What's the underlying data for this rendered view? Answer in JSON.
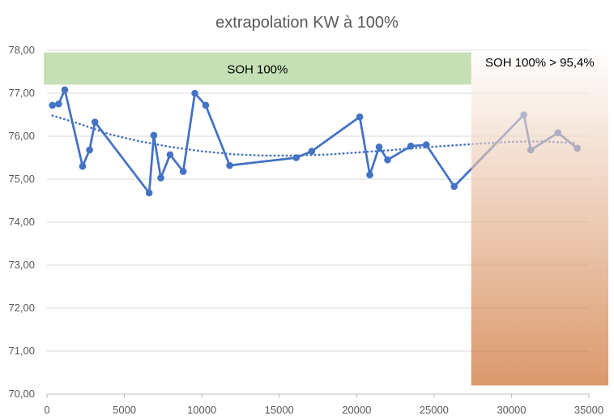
{
  "chart_data": {
    "type": "line",
    "title": "extrapolation KW à 100%",
    "xlabel": "",
    "ylabel": "",
    "xlim": [
      0,
      35000
    ],
    "ylim": [
      70,
      78
    ],
    "x_ticks": [
      0,
      5000,
      10000,
      15000,
      20000,
      25000,
      30000,
      35000
    ],
    "x_tick_labels": [
      "0",
      "5000",
      "10000",
      "15000",
      "20000",
      "25000",
      "30000",
      "35000"
    ],
    "y_ticks": [
      70,
      71,
      72,
      73,
      74,
      75,
      76,
      77,
      78
    ],
    "y_tick_labels": [
      "70,00",
      "71,00",
      "72,00",
      "73,00",
      "74,00",
      "75,00",
      "76,00",
      "77,00",
      "78,00"
    ],
    "grid": {
      "y": true,
      "x": false
    },
    "series": [
      {
        "color": "#4472C4",
        "x": [
          350,
          750,
          1150,
          2300,
          2750,
          3100,
          6600,
          6900,
          7350,
          7950,
          8800,
          9550,
          10250,
          11800,
          16100,
          17100,
          20200,
          20850,
          21450,
          22000,
          23500,
          24500,
          26300,
          30800,
          31250,
          33000,
          34250
        ],
        "y": [
          76.72,
          76.75,
          77.08,
          75.3,
          75.68,
          76.33,
          74.68,
          76.02,
          75.03,
          75.57,
          75.18,
          77.0,
          76.72,
          75.32,
          75.5,
          75.65,
          76.45,
          75.1,
          75.75,
          75.45,
          75.77,
          75.8,
          74.83,
          76.5,
          75.68,
          76.08,
          75.72
        ]
      }
    ],
    "trendline": {
      "style": "dotted",
      "color": "#4472C4",
      "x": [
        350,
        2000,
        4000,
        6000,
        8000,
        10000,
        12000,
        14000,
        16000,
        18000,
        20000,
        22000,
        24000,
        26000,
        28000,
        30000,
        32000,
        34250
      ],
      "y": [
        76.48,
        76.3,
        76.05,
        75.88,
        75.75,
        75.65,
        75.58,
        75.55,
        75.55,
        75.57,
        75.62,
        75.67,
        75.73,
        75.78,
        75.83,
        75.87,
        75.88,
        75.84
      ]
    },
    "bands": [
      {
        "label": "SOH 100%",
        "color": "#C5E0B4",
        "x_range": [
          0,
          27400
        ],
        "y_range": [
          77.2,
          77.95
        ]
      },
      {
        "label": "SOH 100% > 95,4%",
        "color_top": "#FFFFFF",
        "color_bottom": "#C55A11",
        "x_range": [
          27400,
          35000
        ],
        "y_range": [
          70.2,
          78.0
        ]
      }
    ]
  }
}
